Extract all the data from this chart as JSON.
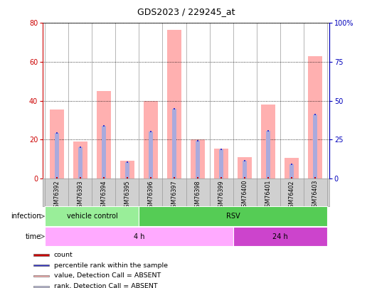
{
  "title": "GDS2023 / 229245_at",
  "samples": [
    "GSM76392",
    "GSM76393",
    "GSM76394",
    "GSM76395",
    "GSM76396",
    "GSM76397",
    "GSM76398",
    "GSM76399",
    "GSM76400",
    "GSM76401",
    "GSM76402",
    "GSM76403"
  ],
  "pink_bar_heights": [
    35.5,
    19.0,
    45.0,
    9.0,
    40.0,
    76.5,
    20.0,
    15.5,
    11.0,
    38.0,
    10.5,
    63.0
  ],
  "blue_bar_heights": [
    23.5,
    16.0,
    27.0,
    8.5,
    24.0,
    36.0,
    19.5,
    15.0,
    9.0,
    24.5,
    7.5,
    33.0
  ],
  "left_yticks": [
    0,
    20,
    40,
    60,
    80
  ],
  "right_yticks": [
    0,
    25,
    50,
    75,
    100
  ],
  "right_ytick_labels": [
    "0",
    "25",
    "50",
    "75",
    "100%"
  ],
  "ylim_left": [
    0,
    80
  ],
  "ylim_right": [
    0,
    100
  ],
  "left_tick_color": "#cc0000",
  "right_tick_color": "#0000bb",
  "pink_bar_color": "#ffb0b0",
  "blue_bar_color": "#aaaadd",
  "red_dot_color": "#cc0000",
  "blue_dot_color": "#3333cc",
  "infection_segments": [
    {
      "text": "vehicle control",
      "start": 0,
      "end": 3,
      "color": "#99ee99"
    },
    {
      "text": "RSV",
      "start": 4,
      "end": 11,
      "color": "#55cc55"
    }
  ],
  "time_segments": [
    {
      "text": "4 h",
      "start": 0,
      "end": 7,
      "color": "#ffaaff"
    },
    {
      "text": "24 h",
      "start": 8,
      "end": 11,
      "color": "#cc44cc"
    }
  ],
  "legend_items": [
    {
      "color": "#cc0000",
      "label": "count"
    },
    {
      "color": "#3333cc",
      "label": "percentile rank within the sample"
    },
    {
      "color": "#ffb0b0",
      "label": "value, Detection Call = ABSENT"
    },
    {
      "color": "#c8c8e8",
      "label": "rank, Detection Call = ABSENT"
    }
  ],
  "plot_bg": "#d8d8d8",
  "label_row_bg": "#d0d0d0"
}
